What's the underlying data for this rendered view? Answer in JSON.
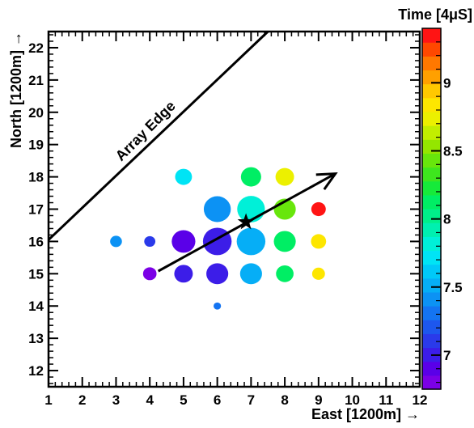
{
  "chart_data": {
    "type": "scatter",
    "title": "",
    "xlabel": "East [1200m] →",
    "ylabel": "North [1200m] →",
    "xlim": [
      1,
      12
    ],
    "ylim": [
      11.5,
      22.5
    ],
    "xticks": [
      1,
      2,
      3,
      4,
      5,
      6,
      7,
      8,
      9,
      10,
      11,
      12
    ],
    "yticks": [
      12,
      13,
      14,
      15,
      16,
      17,
      18,
      19,
      20,
      21,
      22
    ],
    "colorbar": {
      "title": "Time [4μS]",
      "range": [
        6.75,
        9.4
      ],
      "ticks": [
        7,
        7.5,
        8,
        8.5,
        9
      ],
      "colors": [
        "#7b00e6",
        "#5a00e8",
        "#3c1de8",
        "#2a3aea",
        "#1d57ee",
        "#1474f2",
        "#0c92f4",
        "#06aef6",
        "#00c9f8",
        "#00e4f5",
        "#00f0d8",
        "#00f0b0",
        "#00f08a",
        "#00ee64",
        "#16ea3a",
        "#3ee61e",
        "#68e60c",
        "#94e600",
        "#c2ee00",
        "#ecf000",
        "#fde600",
        "#ffc800",
        "#ffa000",
        "#ff7800",
        "#ff4800",
        "#ff1414"
      ]
    },
    "series": [
      {
        "points": [
          {
            "x": 3,
            "y": 16,
            "r": 0.35,
            "t": 7.45
          },
          {
            "x": 4,
            "y": 16,
            "r": 0.33,
            "t": 7.15
          },
          {
            "x": 4,
            "y": 15,
            "r": 0.4,
            "t": 6.85
          },
          {
            "x": 5,
            "y": 16,
            "r": 0.7,
            "t": 6.95
          },
          {
            "x": 5,
            "y": 15,
            "r": 0.55,
            "t": 7.0
          },
          {
            "x": 5,
            "y": 18,
            "r": 0.5,
            "t": 7.75
          },
          {
            "x": 6,
            "y": 14,
            "r": 0.22,
            "t": 7.3
          },
          {
            "x": 6,
            "y": 15,
            "r": 0.65,
            "t": 7.0
          },
          {
            "x": 6,
            "y": 16,
            "r": 0.85,
            "t": 7.05
          },
          {
            "x": 6,
            "y": 17,
            "r": 0.8,
            "t": 7.4
          },
          {
            "x": 7,
            "y": 15,
            "r": 0.65,
            "t": 7.5
          },
          {
            "x": 7,
            "y": 16,
            "r": 0.85,
            "t": 7.55
          },
          {
            "x": 7,
            "y": 17,
            "r": 0.82,
            "t": 7.85
          },
          {
            "x": 7,
            "y": 18,
            "r": 0.6,
            "t": 8.15
          },
          {
            "x": 8,
            "y": 15,
            "r": 0.52,
            "t": 8.15
          },
          {
            "x": 8,
            "y": 16,
            "r": 0.65,
            "t": 8.1
          },
          {
            "x": 8,
            "y": 17,
            "r": 0.65,
            "t": 8.4
          },
          {
            "x": 8,
            "y": 18,
            "r": 0.55,
            "t": 8.75
          },
          {
            "x": 9,
            "y": 15,
            "r": 0.38,
            "t": 8.85
          },
          {
            "x": 9,
            "y": 16,
            "r": 0.45,
            "t": 8.85
          },
          {
            "x": 9,
            "y": 17,
            "r": 0.43,
            "t": 9.35
          }
        ]
      }
    ],
    "core": {
      "x": 6.85,
      "y": 16.6,
      "symbol": "star"
    },
    "direction_arrow": {
      "x1": 4.25,
      "y1": 15.08,
      "x2": 9.5,
      "y2": 18.1
    },
    "edge_line": {
      "x1": 1,
      "y1": 16.05,
      "x2": 7.5,
      "y2": 22.5
    },
    "annotation": "Array Edge"
  }
}
